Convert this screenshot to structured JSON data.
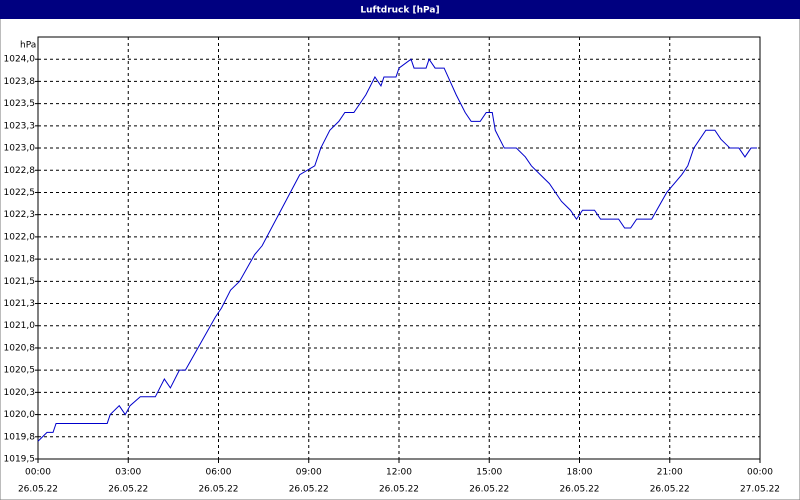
{
  "chart_data": {
    "type": "line",
    "title": "Luftdruck [hPa]",
    "y_label": "hPa",
    "x": [
      0,
      0.3,
      0.5,
      0.6,
      1.0,
      2.3,
      2.4,
      2.7,
      2.9,
      3.06,
      3.4,
      3.9,
      4.2,
      4.4,
      4.7,
      4.9,
      5.9,
      6.1,
      6.4,
      6.7,
      7.2,
      7.45,
      8.7,
      9.2,
      9.4,
      9.7,
      10.0,
      10.2,
      10.5,
      10.9,
      11.2,
      11.4,
      11.5,
      11.9,
      12.0,
      12.4,
      12.5,
      12.9,
      13.0,
      13.2,
      13.5,
      13.9,
      14.2,
      14.4,
      14.7,
      14.9,
      15.1,
      15.2,
      15.5,
      15.9,
      16.2,
      16.4,
      16.7,
      17.0,
      17.4,
      17.7,
      17.9,
      18.1,
      18.5,
      18.7,
      19.3,
      19.5,
      19.7,
      19.9,
      20.4,
      20.9,
      21.4,
      21.6,
      21.8,
      22.2,
      22.5,
      22.7,
      23.0,
      23.3,
      23.5,
      23.7,
      23.9
    ],
    "values": [
      1019.7,
      1019.8,
      1019.8,
      1019.9,
      1019.9,
      1019.9,
      1020.0,
      1020.1,
      1020.0,
      1020.1,
      1020.2,
      1020.2,
      1020.4,
      1020.3,
      1020.5,
      1020.5,
      1021.1,
      1021.2,
      1021.4,
      1021.5,
      1021.8,
      1021.9,
      1022.7,
      1022.8,
      1023.0,
      1023.2,
      1023.3,
      1023.4,
      1023.4,
      1023.6,
      1023.8,
      1023.7,
      1023.8,
      1023.8,
      1023.9,
      1024.0,
      1023.9,
      1023.9,
      1024.0,
      1023.9,
      1023.9,
      1023.6,
      1023.4,
      1023.3,
      1023.3,
      1023.4,
      1023.4,
      1023.2,
      1023.0,
      1023.0,
      1022.9,
      1022.8,
      1022.7,
      1022.6,
      1022.4,
      1022.3,
      1022.2,
      1022.3,
      1022.3,
      1022.2,
      1022.2,
      1022.1,
      1022.1,
      1022.2,
      1022.2,
      1022.5,
      1022.7,
      1022.8,
      1023.0,
      1023.2,
      1023.2,
      1023.1,
      1023.0,
      1023.0,
      1022.9,
      1023.0,
      1023.0
    ],
    "color": "#0000cc",
    "xlim": [
      0,
      24
    ],
    "xticks": [
      {
        "value": 0,
        "label": "00:00"
      },
      {
        "value": 3,
        "label": "03:00"
      },
      {
        "value": 6,
        "label": "06:00"
      },
      {
        "value": 9,
        "label": "09:00"
      },
      {
        "value": 12,
        "label": "12:00"
      },
      {
        "value": 15,
        "label": "15:00"
      },
      {
        "value": 18,
        "label": "18:00"
      },
      {
        "value": 21,
        "label": "21:00"
      },
      {
        "value": 24,
        "label": "00:00"
      }
    ],
    "xtick_dates": [
      "26.05.22",
      "26.05.22",
      "26.05.22",
      "26.05.22",
      "26.05.22",
      "26.05.22",
      "26.05.22",
      "26.05.22",
      "27.05.22"
    ],
    "ylim": [
      1019.5,
      1024.25
    ],
    "yticks": [
      {
        "value": 1019.5,
        "label": "1019,5"
      },
      {
        "value": 1019.75,
        "label": "1019,8"
      },
      {
        "value": 1020,
        "label": "1020,0"
      },
      {
        "value": 1020.25,
        "label": "1020,3"
      },
      {
        "value": 1020.5,
        "label": "1020,5"
      },
      {
        "value": 1020.75,
        "label": "1020,8"
      },
      {
        "value": 1021,
        "label": "1021,0"
      },
      {
        "value": 1021.25,
        "label": "1021,3"
      },
      {
        "value": 1021.5,
        "label": "1021,5"
      },
      {
        "value": 1021.75,
        "label": "1021,8"
      },
      {
        "value": 1022,
        "label": "1022,0"
      },
      {
        "value": 1022.25,
        "label": "1022,3"
      },
      {
        "value": 1022.5,
        "label": "1022,5"
      },
      {
        "value": 1022.75,
        "label": "1022,8"
      },
      {
        "value": 1023,
        "label": "1023,0"
      },
      {
        "value": 1023.25,
        "label": "1023,3"
      },
      {
        "value": 1023.5,
        "label": "1023,5"
      },
      {
        "value": 1023.75,
        "label": "1023,8"
      },
      {
        "value": 1024,
        "label": "1024,0"
      }
    ],
    "grid": true
  }
}
